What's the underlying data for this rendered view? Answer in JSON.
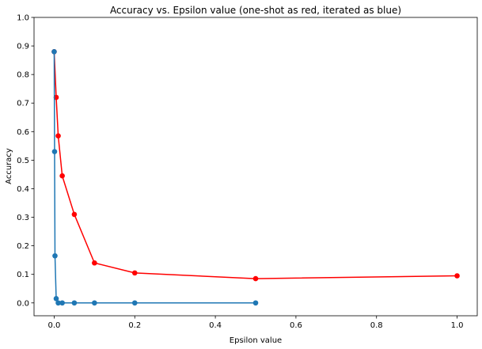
{
  "chart_data": {
    "type": "line",
    "title": "Accuracy vs. Epsilon value (one-shot as red, iterated as blue)",
    "xlabel": "Epsilon value",
    "ylabel": "Accuracy",
    "xlim": [
      -0.05,
      1.05
    ],
    "ylim": [
      -0.045,
      1.0
    ],
    "x_ticks": [
      0.0,
      0.2,
      0.4,
      0.6,
      0.8,
      1.0
    ],
    "x_tick_labels": [
      "0.0",
      "0.2",
      "0.4",
      "0.6",
      "0.8",
      "1.0"
    ],
    "y_ticks": [
      0.0,
      0.1,
      0.2,
      0.3,
      0.4,
      0.5,
      0.6,
      0.7,
      0.8,
      0.9,
      1.0
    ],
    "y_tick_labels": [
      "0.0",
      "0.1",
      "0.2",
      "0.3",
      "0.4",
      "0.5",
      "0.6",
      "0.7",
      "0.8",
      "0.9",
      "1.0"
    ],
    "grid": false,
    "legend": false,
    "series": [
      {
        "color": "#ff0000",
        "x": [
          0.0,
          0.005,
          0.01,
          0.02,
          0.05,
          0.1,
          0.2,
          0.5,
          1.0
        ],
        "y": [
          0.88,
          0.72,
          0.585,
          0.445,
          0.31,
          0.14,
          0.105,
          0.085,
          0.095
        ]
      },
      {
        "color": "#1f77b4",
        "x": [
          0.0,
          0.001,
          0.002,
          0.005,
          0.01,
          0.02,
          0.05,
          0.1,
          0.2,
          0.5
        ],
        "y": [
          0.88,
          0.53,
          0.165,
          0.015,
          0.0,
          0.0,
          0.0,
          0.0,
          0.0,
          0.0
        ]
      }
    ]
  }
}
